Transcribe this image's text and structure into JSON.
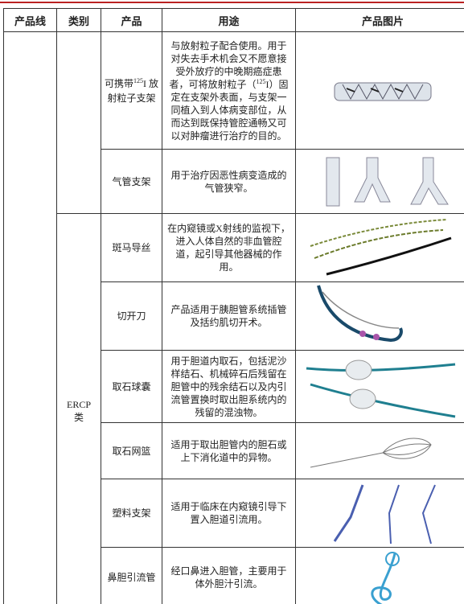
{
  "table": {
    "header": [
      "产品线",
      "类别",
      "产品",
      "用途",
      "产品图片"
    ],
    "rows": [
      {
        "product": {
          "pre": "可携带",
          "sup": "125",
          "post": "I 放射粒子支架"
        },
        "usage": {
          "pre": "与放射粒子配合使用。用于对失去手术机会又不愿意接受外放疗的中晚期癌症患者，可将放射粒子（",
          "sup": "125",
          "post": "I）固定在支架外表面，与支架一同植入到人体病变部位，从而达到既保持管腔通畅又可以对肿瘤进行治疗的目的。"
        }
      },
      {
        "product": "气管支架",
        "usage": "用于治疗因恶性病变造成的气管狭窄。"
      },
      {
        "category": "ERCP类",
        "product": "斑马导丝",
        "usage": "在内窥镜或X射线的监视下，进入人体自然的非血管腔道，起引导其他器械的作用。"
      },
      {
        "product": "切开刀",
        "usage": "产品适用于胰胆管系统插管及括约肌切开术。"
      },
      {
        "product": "取石球囊",
        "usage": "用于胆道内取石，包括泥沙样结石、机械碎石后残留在胆管中的残余结石以及内引流管置换时取出胆系统内的残留的混浊物。"
      },
      {
        "product": "取石网篮",
        "usage": "适用于取出胆管内的胆石或上下消化道中的异物。"
      },
      {
        "product": "塑料支架",
        "usage": "适用于临床在内窥镜引导下置入胆道引流用。"
      },
      {
        "product": "鼻胆引流管",
        "usage": "经口鼻进入胆管，主要用于体外胆汁引流。"
      }
    ]
  }
}
